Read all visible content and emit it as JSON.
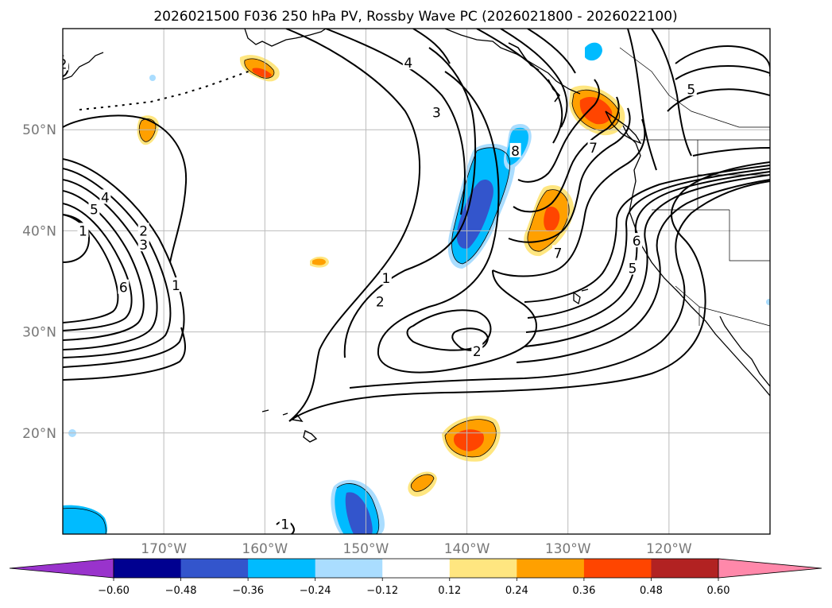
{
  "chart_data": {
    "type": "map-contour",
    "title": "2026021500 F036 250 hPa PV, Rossby Wave PC (2026021800 - 2026022100)",
    "lon_range": [
      -180,
      -110
    ],
    "lat_range": [
      10,
      60
    ],
    "x_ticks": [
      {
        "lon": -170,
        "label": "170°W"
      },
      {
        "lon": -160,
        "label": "160°W"
      },
      {
        "lon": -150,
        "label": "150°W"
      },
      {
        "lon": -140,
        "label": "140°W"
      },
      {
        "lon": -130,
        "label": "130°W"
      },
      {
        "lon": -120,
        "label": "120°W"
      }
    ],
    "y_ticks": [
      {
        "lat": 20,
        "label": "20°N"
      },
      {
        "lat": 30,
        "label": "30°N"
      },
      {
        "lat": 40,
        "label": "40°N"
      },
      {
        "lat": 50,
        "label": "50°N"
      }
    ],
    "grid": true,
    "colorbar": {
      "position": "bottom",
      "extend": "both",
      "boundaries": [
        -0.6,
        -0.48,
        -0.36,
        -0.24,
        -0.12,
        0.12,
        0.24,
        0.36,
        0.48,
        0.6
      ],
      "tick_labels": [
        "−0.60",
        "−0.48",
        "−0.36",
        "−0.24",
        "−0.12",
        "0.12",
        "0.24",
        "0.36",
        "0.48",
        "0.60"
      ],
      "colors": [
        "#9933cc",
        "#000090",
        "#3355cc",
        "#00bbff",
        "#aaddff",
        "#ffffff",
        "#ffe680",
        "#ffa000",
        "#ff4500",
        "#b22222",
        "#ff88aa"
      ]
    },
    "contour_labels": [
      {
        "text": "4",
        "lon": -145.8,
        "lat": 56.6
      },
      {
        "text": "3",
        "lon": -143.0,
        "lat": 51.7
      },
      {
        "text": "8",
        "lon": -135.2,
        "lat": 47.9
      },
      {
        "text": "5",
        "lon": -117.8,
        "lat": 54.0
      },
      {
        "text": "7",
        "lon": -127.5,
        "lat": 48.2
      },
      {
        "text": "7",
        "lon": -131.0,
        "lat": 37.8
      },
      {
        "text": "6",
        "lon": -123.2,
        "lat": 39.0
      },
      {
        "text": "5",
        "lon": -123.6,
        "lat": 36.3
      },
      {
        "text": "1",
        "lon": -148.0,
        "lat": 35.3
      },
      {
        "text": "2",
        "lon": -148.6,
        "lat": 33.0
      },
      {
        "text": "2",
        "lon": -139.0,
        "lat": 28.1
      },
      {
        "text": "5",
        "lon": -176.9,
        "lat": 42.1
      },
      {
        "text": "4",
        "lon": -175.8,
        "lat": 43.3
      },
      {
        "text": "1",
        "lon": -178.0,
        "lat": 40.0
      },
      {
        "text": "2",
        "lon": -172.0,
        "lat": 40.0
      },
      {
        "text": "3",
        "lon": -172.0,
        "lat": 38.6
      },
      {
        "text": "6",
        "lon": -174.0,
        "lat": 34.4
      },
      {
        "text": "1",
        "lon": -168.8,
        "lat": 34.6
      },
      {
        "text": "1",
        "lon": -158.0,
        "lat": 11.0
      },
      {
        "text": "2",
        "lon": -180.0,
        "lat": 56.5
      }
    ],
    "pv_anomaly_centers": [
      {
        "lon": -160.5,
        "lat": 56.0,
        "value": 0.4
      },
      {
        "lon": -172.0,
        "lat": 50.0,
        "value": 0.26
      },
      {
        "lon": -128.0,
        "lat": 52.0,
        "value": 0.45
      },
      {
        "lon": -131.0,
        "lat": 40.0,
        "value": 0.38
      },
      {
        "lon": -139.5,
        "lat": 19.0,
        "value": 0.42
      },
      {
        "lon": -144.5,
        "lat": 15.0,
        "value": 0.26
      },
      {
        "lon": -157.3,
        "lat": 36.8,
        "value": 0.26
      },
      {
        "lon": -138.5,
        "lat": 41.0,
        "value": -0.45
      },
      {
        "lon": -135.5,
        "lat": 47.0,
        "value": -0.3
      },
      {
        "lon": -150.8,
        "lat": 12.5,
        "value": -0.45
      },
      {
        "lon": -178.0,
        "lat": 11.0,
        "value": -0.3
      },
      {
        "lon": -126.5,
        "lat": 57.5,
        "value": -0.26
      }
    ]
  }
}
